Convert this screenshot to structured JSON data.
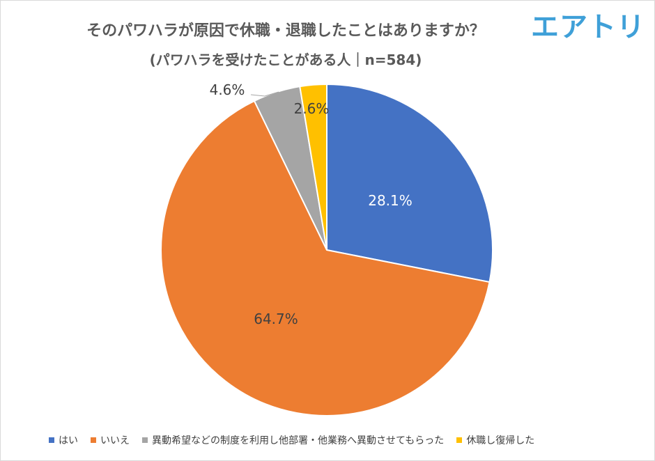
{
  "title": "そのパワハラが原因で休職・退職したことはありますか？",
  "subtitle": "(パワハラを受けたことがある人｜n=584)",
  "logo": "エアトリ",
  "chart_data": {
    "type": "pie",
    "slices": [
      {
        "label": "はい",
        "value": 28.1,
        "display": "28.1%",
        "color": "#4472c4"
      },
      {
        "label": "いいえ",
        "value": 64.7,
        "display": "64.7%",
        "color": "#ed7d31"
      },
      {
        "label": "異動希望などの制度を利用し他部署・他業務へ異動させてもらった",
        "value": 4.6,
        "display": "4.6%",
        "color": "#a5a5a5"
      },
      {
        "label": "休職し復帰した",
        "value": 2.6,
        "display": "2.6%",
        "color": "#ffc000"
      }
    ],
    "legend_position": "bottom"
  }
}
